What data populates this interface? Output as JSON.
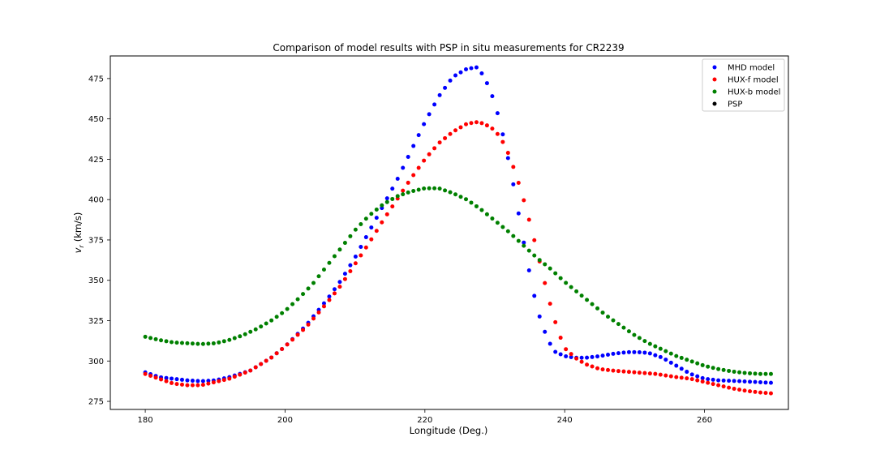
{
  "chart_data": {
    "type": "scatter",
    "title": "Comparison of model results with PSP in situ measurements for CR2239",
    "xlabel": "Longitude (Deg.)",
    "ylabel_main": "v",
    "ylabel_sub": "r",
    "ylabel_unit": "(km/s)",
    "xlim": [
      175,
      272
    ],
    "ylim": [
      270,
      489
    ],
    "xticks": [
      180,
      200,
      220,
      240,
      260
    ],
    "yticks": [
      275,
      300,
      325,
      350,
      375,
      400,
      425,
      450,
      475
    ],
    "legend_position": "top-right",
    "grid": false,
    "x_range": {
      "start": 180,
      "end": 269.5,
      "count": 120
    },
    "series": [
      {
        "name": "MHD model",
        "color": "#0000ff",
        "knots": [
          [
            180,
            293
          ],
          [
            182,
            290
          ],
          [
            184,
            289
          ],
          [
            186,
            288
          ],
          [
            188,
            287.5
          ],
          [
            190,
            288
          ],
          [
            192,
            290
          ],
          [
            195,
            294
          ],
          [
            198,
            302
          ],
          [
            200,
            309
          ],
          [
            203,
            322
          ],
          [
            206,
            338
          ],
          [
            208,
            350
          ],
          [
            210,
            364
          ],
          [
            212,
            380
          ],
          [
            214,
            396
          ],
          [
            216,
            412
          ],
          [
            218,
            430
          ],
          [
            220,
            448
          ],
          [
            222,
            464
          ],
          [
            224,
            476
          ],
          [
            226,
            481
          ],
          [
            227.5,
            482
          ],
          [
            228.5,
            476
          ],
          [
            229.5,
            466
          ],
          [
            230.5,
            452
          ],
          [
            231.5,
            434
          ],
          [
            232.5,
            413
          ],
          [
            233.5,
            389
          ],
          [
            234.5,
            365
          ],
          [
            235.5,
            343
          ],
          [
            236.5,
            326
          ],
          [
            237.5,
            314
          ],
          [
            238.5,
            306
          ],
          [
            240,
            303
          ],
          [
            241.5,
            302
          ],
          [
            243,
            302
          ],
          [
            245,
            303
          ],
          [
            247,
            304.5
          ],
          [
            249,
            305.5
          ],
          [
            250.5,
            305.5
          ],
          [
            252,
            305
          ],
          [
            254,
            302
          ],
          [
            256,
            297
          ],
          [
            258,
            292
          ],
          [
            260,
            289
          ],
          [
            262,
            288
          ],
          [
            265,
            287.5
          ],
          [
            269.5,
            286.5
          ]
        ]
      },
      {
        "name": "HUX-f model",
        "color": "#ff0000",
        "knots": [
          [
            180,
            292
          ],
          [
            182,
            289
          ],
          [
            184,
            286
          ],
          [
            186,
            285
          ],
          [
            188,
            285
          ],
          [
            190,
            287
          ],
          [
            192,
            289
          ],
          [
            195,
            294
          ],
          [
            198,
            302
          ],
          [
            200,
            309
          ],
          [
            203,
            321
          ],
          [
            206,
            336
          ],
          [
            208,
            347
          ],
          [
            210,
            360
          ],
          [
            212,
            373
          ],
          [
            214,
            387
          ],
          [
            216,
            400
          ],
          [
            218,
            413
          ],
          [
            220,
            425
          ],
          [
            222,
            435
          ],
          [
            224,
            442
          ],
          [
            226,
            447
          ],
          [
            227.5,
            448
          ],
          [
            228.5,
            447
          ],
          [
            230,
            443
          ],
          [
            231,
            437
          ],
          [
            232,
            428
          ],
          [
            233,
            416
          ],
          [
            234,
            402
          ],
          [
            235,
            386
          ],
          [
            236,
            369
          ],
          [
            237,
            351
          ],
          [
            238,
            334
          ],
          [
            239,
            319
          ],
          [
            240,
            308
          ],
          [
            241.5,
            302
          ],
          [
            243,
            298
          ],
          [
            245,
            295
          ],
          [
            247,
            294
          ],
          [
            250,
            293
          ],
          [
            253,
            292
          ],
          [
            256,
            290
          ],
          [
            258,
            289
          ],
          [
            260,
            287
          ],
          [
            262,
            285
          ],
          [
            264,
            283
          ],
          [
            266,
            281.5
          ],
          [
            268,
            280.5
          ],
          [
            269.5,
            280
          ]
        ]
      },
      {
        "name": "HUX-b model",
        "color": "#008000",
        "knots": [
          [
            180,
            315
          ],
          [
            182,
            313
          ],
          [
            184,
            311.5
          ],
          [
            186,
            311
          ],
          [
            188,
            310.5
          ],
          [
            190,
            311
          ],
          [
            192,
            313
          ],
          [
            194,
            316
          ],
          [
            196,
            320
          ],
          [
            198,
            325
          ],
          [
            200,
            331
          ],
          [
            202,
            339
          ],
          [
            204,
            348
          ],
          [
            206,
            359
          ],
          [
            208,
            370
          ],
          [
            210,
            381
          ],
          [
            212,
            390
          ],
          [
            214,
            397
          ],
          [
            216,
            402
          ],
          [
            218,
            405
          ],
          [
            220,
            407
          ],
          [
            222,
            407
          ],
          [
            224,
            404
          ],
          [
            226,
            400
          ],
          [
            228,
            394
          ],
          [
            230,
            387
          ],
          [
            232,
            380
          ],
          [
            234,
            372
          ],
          [
            236,
            364
          ],
          [
            238,
            357
          ],
          [
            240,
            349
          ],
          [
            242,
            342
          ],
          [
            244,
            335
          ],
          [
            246,
            328
          ],
          [
            248,
            322
          ],
          [
            250,
            316
          ],
          [
            252,
            311
          ],
          [
            254,
            307
          ],
          [
            256,
            303
          ],
          [
            258,
            300
          ],
          [
            260,
            297
          ],
          [
            262,
            295
          ],
          [
            264,
            293.5
          ],
          [
            266,
            292.5
          ],
          [
            268,
            292
          ],
          [
            269.5,
            292
          ]
        ]
      },
      {
        "name": "PSP",
        "color": "#000000",
        "knots": []
      }
    ]
  }
}
